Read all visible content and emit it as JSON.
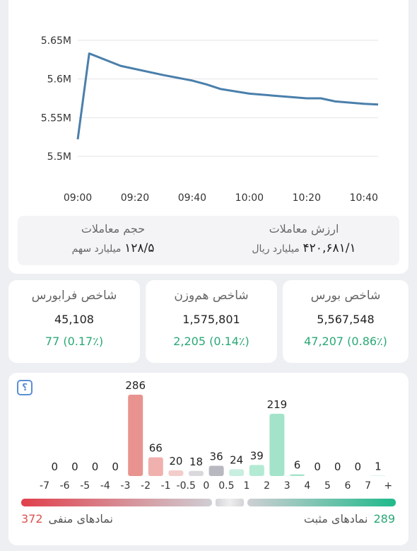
{
  "chart_data": [
    {
      "type": "line",
      "x": [
        "09:00",
        "09:04",
        "09:15",
        "09:30",
        "09:40",
        "09:45",
        "09:50",
        "10:00",
        "10:10",
        "10:20",
        "10:25",
        "10:30",
        "10:40",
        "10:45"
      ],
      "values": [
        5522000,
        5633000,
        5617000,
        5605000,
        5598000,
        5593000,
        5587000,
        5581000,
        5578000,
        5575000,
        5575000,
        5571000,
        5568000,
        5567000
      ],
      "color": "#4a7fab",
      "xlim": [
        "09:00",
        "10:45"
      ],
      "xticks": [
        "09:00",
        "09:20",
        "09:40",
        "10:00",
        "10:20",
        "10:40"
      ],
      "ylim": [
        5500000,
        5650000
      ],
      "yticks": [
        {
          "value": 5500000,
          "label": "5.5M"
        },
        {
          "value": 5550000,
          "label": "5.55M"
        },
        {
          "value": 5600000,
          "label": "5.6M"
        },
        {
          "value": 5650000,
          "label": "5.65M"
        }
      ],
      "grid": true
    },
    {
      "type": "histogram",
      "bins": [
        "-7",
        "-6",
        "-5",
        "-4",
        "-3",
        "-2",
        "-1",
        "-0.5",
        "0",
        "0.5",
        "1",
        "2",
        "3",
        "4",
        "5",
        "6",
        "7",
        "+"
      ],
      "values": [
        0,
        0,
        0,
        0,
        286,
        66,
        20,
        18,
        36,
        24,
        39,
        219,
        6,
        0,
        0,
        0,
        1
      ],
      "colors": [
        "#e8938f",
        "#e8938f",
        "#e8938f",
        "#e8938f",
        "#e8938f",
        "#f0b1ae",
        "#f3cdcb",
        "#d8d8dd",
        "#b8b8c0",
        "#c8eee0",
        "#b3ead4",
        "#a3e3ca",
        "#a3e3ca",
        "#a3e3ca",
        "#a3e3ca",
        "#a3e3ca",
        "#a3e3ca"
      ]
    }
  ],
  "trade_stats": [
    {
      "title": "ارزش معاملات",
      "value": "۴۲۰,۶۸۱/۱",
      "unit": "میلیارد ریال"
    },
    {
      "title": "حجم معاملات",
      "value": "۱۲۸/۵",
      "unit": "میلیارد سهم"
    }
  ],
  "indices": [
    {
      "title": "شاخص بورس",
      "value": "5,567,548",
      "change": "47,207 (0.86٪)"
    },
    {
      "title": "شاخص هم‌وزن",
      "value": "1,575,801",
      "change": "2,205 (0.14٪)"
    },
    {
      "title": "شاخص فرابورس",
      "value": "45,108",
      "change": "77 (0.17٪)"
    }
  ],
  "breadth": {
    "help_icon": "؟",
    "negative_label": "نمادهای منفی",
    "negative_count": 372,
    "positive_label": "نمادهای مثبت",
    "positive_count": 289
  }
}
